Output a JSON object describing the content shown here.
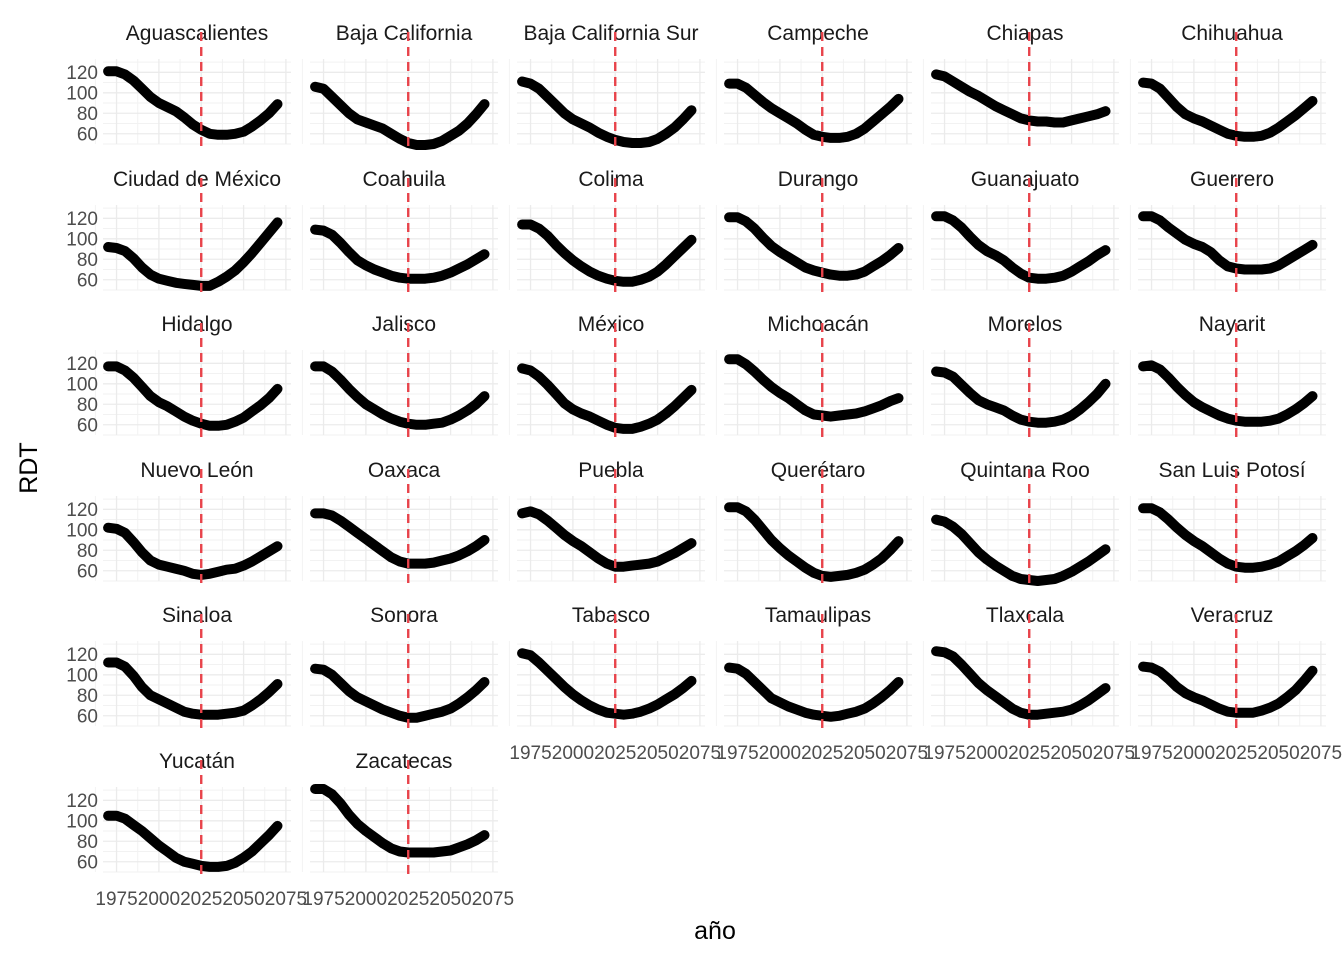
{
  "chart_data": {
    "type": "line",
    "xlabel": "año",
    "ylabel": "RDT",
    "x_ticks": [
      1975,
      2000,
      2025,
      2050,
      2075
    ],
    "y_ticks": [
      60,
      80,
      100,
      120
    ],
    "xlim": [
      1967,
      2078
    ],
    "ylim": [
      50,
      133
    ],
    "reference_line_x": 2025,
    "grid": true,
    "colors": {
      "line": "#000000",
      "reference": "#e8434a",
      "grid": "#ebebeb"
    },
    "x": [
      1970,
      1975,
      1980,
      1985,
      1990,
      1995,
      2000,
      2005,
      2010,
      2015,
      2020,
      2025,
      2030,
      2035,
      2040,
      2045,
      2050,
      2055,
      2060,
      2065,
      2070
    ],
    "panels": [
      {
        "name": "Aguascalientes",
        "values": [
          121,
          121,
          118,
          112,
          104,
          96,
          90,
          86,
          82,
          76,
          69,
          64,
          60,
          59,
          59,
          60,
          62,
          67,
          73,
          80,
          89
        ]
      },
      {
        "name": "Baja California",
        "values": [
          106,
          104,
          96,
          88,
          80,
          74,
          71,
          68,
          65,
          60,
          55,
          51,
          49,
          49,
          50,
          53,
          58,
          63,
          70,
          79,
          89
        ]
      },
      {
        "name": "Baja California Sur",
        "values": [
          111,
          109,
          104,
          96,
          88,
          80,
          74,
          70,
          66,
          61,
          57,
          54,
          52,
          51,
          51,
          52,
          55,
          60,
          66,
          74,
          83
        ]
      },
      {
        "name": "Campeche",
        "values": [
          109,
          109,
          105,
          98,
          91,
          85,
          80,
          75,
          70,
          64,
          59,
          57,
          56,
          56,
          57,
          60,
          65,
          72,
          79,
          86,
          94
        ]
      },
      {
        "name": "Chiapas",
        "values": [
          118,
          116,
          111,
          106,
          101,
          97,
          92,
          87,
          83,
          79,
          75,
          73,
          72,
          72,
          71,
          71,
          73,
          75,
          77,
          79,
          82
        ]
      },
      {
        "name": "Chihuahua",
        "values": [
          110,
          109,
          104,
          95,
          86,
          79,
          75,
          72,
          68,
          64,
          60,
          58,
          57,
          57,
          58,
          61,
          66,
          72,
          78,
          85,
          92
        ]
      },
      {
        "name": "Ciudad de México",
        "values": [
          92,
          91,
          88,
          81,
          72,
          65,
          61,
          59,
          57,
          56,
          55,
          54,
          54,
          58,
          63,
          69,
          77,
          86,
          96,
          106,
          116
        ]
      },
      {
        "name": "Coahuila",
        "values": [
          109,
          108,
          104,
          96,
          87,
          79,
          74,
          70,
          67,
          64,
          62,
          61,
          61,
          61,
          62,
          64,
          67,
          71,
          75,
          80,
          85
        ]
      },
      {
        "name": "Colima",
        "values": [
          114,
          114,
          110,
          103,
          94,
          86,
          79,
          73,
          68,
          64,
          61,
          59,
          58,
          58,
          60,
          63,
          68,
          75,
          83,
          91,
          99
        ]
      },
      {
        "name": "Durango",
        "values": [
          121,
          121,
          117,
          110,
          101,
          93,
          87,
          82,
          77,
          72,
          69,
          67,
          65,
          64,
          64,
          65,
          68,
          73,
          78,
          84,
          91
        ]
      },
      {
        "name": "Guanajuato",
        "values": [
          122,
          122,
          118,
          111,
          102,
          94,
          88,
          84,
          79,
          72,
          66,
          62,
          61,
          61,
          62,
          64,
          68,
          73,
          78,
          84,
          89
        ]
      },
      {
        "name": "Guerrero",
        "values": [
          122,
          122,
          118,
          111,
          105,
          99,
          95,
          92,
          87,
          79,
          73,
          71,
          70,
          70,
          70,
          71,
          74,
          79,
          84,
          89,
          94
        ]
      },
      {
        "name": "Hidalgo",
        "values": [
          117,
          117,
          113,
          106,
          97,
          88,
          82,
          78,
          73,
          68,
          64,
          61,
          59,
          59,
          60,
          63,
          67,
          73,
          79,
          86,
          95
        ]
      },
      {
        "name": "Jalisco",
        "values": [
          117,
          117,
          112,
          104,
          95,
          87,
          80,
          75,
          70,
          66,
          63,
          61,
          60,
          60,
          61,
          62,
          65,
          69,
          74,
          80,
          88
        ]
      },
      {
        "name": "México",
        "values": [
          115,
          113,
          107,
          99,
          90,
          81,
          75,
          71,
          68,
          64,
          60,
          57,
          56,
          56,
          58,
          61,
          65,
          71,
          78,
          86,
          94
        ]
      },
      {
        "name": "Michoacán",
        "values": [
          124,
          124,
          119,
          112,
          104,
          97,
          91,
          86,
          80,
          74,
          70,
          69,
          68,
          69,
          70,
          71,
          73,
          76,
          79,
          83,
          86
        ]
      },
      {
        "name": "Morelos",
        "values": [
          112,
          111,
          107,
          99,
          91,
          84,
          80,
          77,
          74,
          69,
          65,
          63,
          62,
          62,
          63,
          65,
          69,
          75,
          82,
          90,
          100
        ]
      },
      {
        "name": "Nayarit",
        "values": [
          117,
          118,
          114,
          106,
          97,
          89,
          82,
          77,
          73,
          69,
          66,
          64,
          63,
          63,
          63,
          64,
          66,
          70,
          75,
          81,
          88
        ]
      },
      {
        "name": "Nuevo León",
        "values": [
          102,
          101,
          97,
          88,
          78,
          70,
          66,
          64,
          62,
          60,
          57,
          56,
          57,
          59,
          61,
          62,
          65,
          69,
          74,
          79,
          84
        ]
      },
      {
        "name": "Oaxaca",
        "values": [
          116,
          116,
          114,
          109,
          103,
          97,
          91,
          85,
          79,
          73,
          69,
          67,
          67,
          67,
          68,
          70,
          72,
          75,
          79,
          84,
          90
        ]
      },
      {
        "name": "Puebla",
        "values": [
          116,
          118,
          115,
          109,
          102,
          95,
          89,
          84,
          78,
          72,
          67,
          64,
          64,
          65,
          66,
          67,
          69,
          73,
          77,
          82,
          87
        ]
      },
      {
        "name": "Querétaro",
        "values": [
          122,
          122,
          118,
          110,
          100,
          90,
          82,
          75,
          69,
          63,
          58,
          55,
          54,
          55,
          56,
          58,
          61,
          66,
          72,
          80,
          89
        ]
      },
      {
        "name": "Quintana Roo",
        "values": [
          110,
          108,
          103,
          96,
          87,
          78,
          71,
          65,
          60,
          55,
          52,
          51,
          50,
          51,
          52,
          55,
          59,
          64,
          69,
          75,
          81
        ]
      },
      {
        "name": "San Luis Potosí",
        "values": [
          121,
          121,
          117,
          110,
          102,
          95,
          89,
          84,
          78,
          72,
          67,
          64,
          63,
          63,
          64,
          66,
          69,
          74,
          79,
          85,
          92
        ]
      },
      {
        "name": "Sinaloa",
        "values": [
          112,
          112,
          108,
          99,
          88,
          80,
          76,
          72,
          68,
          64,
          62,
          61,
          61,
          61,
          62,
          63,
          65,
          70,
          76,
          83,
          91
        ]
      },
      {
        "name": "Sonora",
        "values": [
          106,
          105,
          100,
          92,
          84,
          78,
          74,
          70,
          66,
          63,
          60,
          58,
          58,
          60,
          62,
          64,
          67,
          72,
          78,
          85,
          93
        ]
      },
      {
        "name": "Tabasco",
        "values": [
          121,
          119,
          112,
          104,
          96,
          88,
          81,
          75,
          70,
          66,
          63,
          62,
          61,
          62,
          64,
          67,
          71,
          76,
          81,
          87,
          94
        ]
      },
      {
        "name": "Tamaulipas",
        "values": [
          107,
          106,
          101,
          93,
          85,
          77,
          73,
          69,
          66,
          63,
          61,
          60,
          59,
          60,
          62,
          64,
          67,
          72,
          78,
          85,
          93
        ]
      },
      {
        "name": "Tlaxcala",
        "values": [
          123,
          122,
          118,
          110,
          101,
          92,
          85,
          79,
          73,
          67,
          63,
          61,
          61,
          62,
          63,
          64,
          66,
          70,
          75,
          81,
          87
        ]
      },
      {
        "name": "Veracruz",
        "values": [
          108,
          107,
          103,
          96,
          88,
          82,
          78,
          75,
          71,
          67,
          64,
          63,
          63,
          63,
          65,
          68,
          72,
          78,
          85,
          94,
          104
        ]
      },
      {
        "name": "Yucatán",
        "values": [
          105,
          105,
          102,
          96,
          90,
          83,
          76,
          70,
          64,
          60,
          58,
          56,
          55,
          55,
          56,
          59,
          64,
          70,
          78,
          86,
          95
        ]
      },
      {
        "name": "Zacatecas",
        "values": [
          131,
          131,
          126,
          117,
          106,
          97,
          90,
          84,
          78,
          73,
          70,
          69,
          69,
          69,
          69,
          70,
          71,
          74,
          77,
          81,
          86
        ]
      }
    ]
  }
}
